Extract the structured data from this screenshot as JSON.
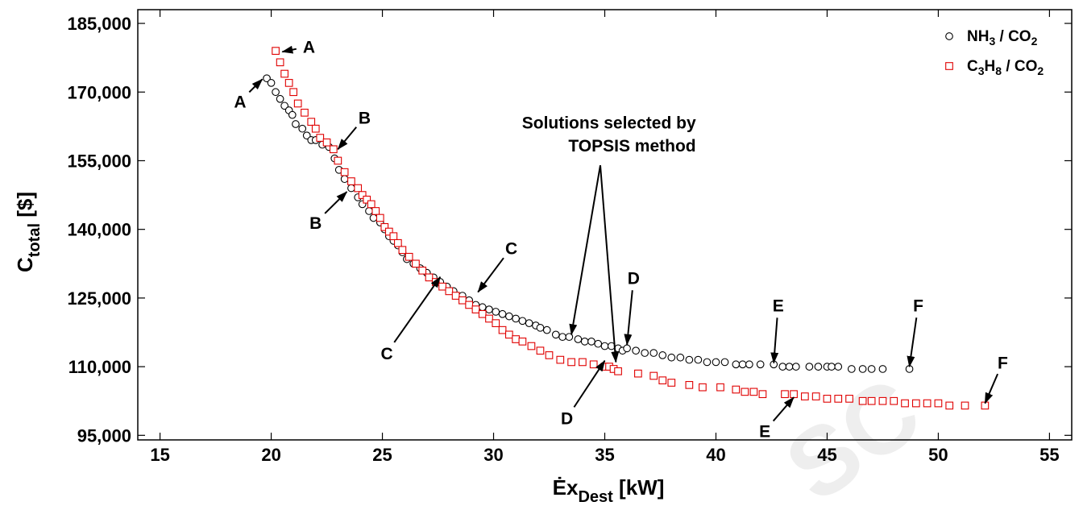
{
  "chart_data": {
    "type": "scatter",
    "xlim": [
      14,
      56
    ],
    "ylim": [
      94000,
      188000
    ],
    "xticks": [
      15,
      20,
      25,
      30,
      35,
      40,
      45,
      50,
      55
    ],
    "yticks": [
      95000,
      110000,
      125000,
      140000,
      155000,
      170000,
      185000
    ],
    "xtick_labels": [
      "15",
      "20",
      "25",
      "30",
      "35",
      "40",
      "45",
      "50",
      "55"
    ],
    "ytick_labels": [
      "95,000",
      "110,000",
      "125,000",
      "140,000",
      "155,000",
      "170,000",
      "185,000"
    ],
    "xlabel_main": "Ėx",
    "xlabel_sub": "Dest",
    "xlabel_unit": " [kW]",
    "ylabel_main": "C",
    "ylabel_sub": "total",
    "ylabel_unit": " [$]",
    "grid": false,
    "legend_position": "top-right",
    "watermark": "SC",
    "colors": {
      "ammonia": "#000000",
      "propane": "#e00000"
    },
    "legend": [
      {
        "series": 0,
        "parts": [
          [
            "NH",
            ""
          ],
          [
            "3",
            "sub"
          ],
          [
            " / CO",
            ""
          ],
          [
            "2",
            "sub"
          ]
        ]
      },
      {
        "series": 1,
        "parts": [
          [
            "C",
            ""
          ],
          [
            "3",
            "sub"
          ],
          [
            "H",
            ""
          ],
          [
            "8",
            "sub"
          ],
          [
            " / CO",
            ""
          ],
          [
            "2",
            "sub"
          ]
        ]
      }
    ],
    "series": [
      {
        "name": "NH3 / CO2",
        "marker": "circle",
        "x": [
          19.8,
          20.0,
          20.2,
          20.4,
          20.6,
          20.8,
          20.95,
          21.1,
          21.4,
          21.6,
          21.8,
          22.0,
          22.3,
          22.6,
          22.85,
          23.05,
          23.3,
          23.6,
          23.9,
          24.1,
          24.4,
          24.6,
          24.9,
          25.1,
          25.3,
          25.5,
          25.7,
          25.9,
          26.1,
          26.4,
          26.7,
          27.0,
          27.3,
          27.6,
          27.9,
          28.2,
          28.6,
          28.9,
          29.2,
          29.5,
          29.8,
          30.1,
          30.4,
          30.7,
          31.0,
          31.3,
          31.6,
          31.9,
          32.1,
          32.4,
          32.8,
          33.1,
          33.4,
          33.8,
          34.1,
          34.4,
          34.7,
          35.0,
          35.3,
          35.6,
          35.8,
          36.0,
          36.4,
          36.8,
          37.2,
          37.6,
          38.0,
          38.4,
          38.8,
          39.2,
          39.6,
          40.0,
          40.4,
          40.9,
          41.2,
          41.5,
          42.0,
          42.6,
          43.0,
          43.3,
          43.6,
          44.2,
          44.6,
          45.0,
          45.2,
          45.5,
          46.1,
          46.6,
          47.0,
          47.5,
          48.7
        ],
        "y": [
          173000,
          172000,
          170000,
          168500,
          167000,
          166000,
          165000,
          163000,
          162000,
          160500,
          159500,
          159500,
          158500,
          158000,
          155500,
          153000,
          151000,
          149000,
          147000,
          145500,
          144000,
          142500,
          141500,
          140000,
          138500,
          137500,
          136500,
          135000,
          133500,
          132500,
          131500,
          130500,
          129500,
          128500,
          127500,
          126500,
          125500,
          124500,
          123500,
          123000,
          122500,
          122000,
          121500,
          121000,
          120500,
          120000,
          119500,
          119000,
          118500,
          118000,
          117000,
          116500,
          116500,
          116000,
          115500,
          115500,
          115000,
          114500,
          114500,
          114000,
          113500,
          114000,
          113500,
          113000,
          113000,
          112500,
          112000,
          112000,
          111500,
          111500,
          111000,
          111000,
          111000,
          110500,
          110500,
          110500,
          110500,
          110500,
          110000,
          110000,
          110000,
          110000,
          110000,
          110000,
          110000,
          110000,
          109500,
          109500,
          109500,
          109500,
          109500
        ]
      },
      {
        "name": "C3H8 / CO2",
        "marker": "square",
        "x": [
          20.2,
          20.4,
          20.6,
          20.8,
          21.0,
          21.2,
          21.5,
          21.8,
          22.0,
          22.2,
          22.5,
          22.8,
          23.0,
          23.3,
          23.6,
          23.9,
          24.1,
          24.3,
          24.5,
          24.7,
          24.9,
          25.1,
          25.3,
          25.5,
          25.7,
          25.9,
          26.2,
          26.5,
          26.8,
          27.1,
          27.4,
          27.7,
          28.0,
          28.3,
          28.6,
          28.9,
          29.2,
          29.5,
          29.8,
          30.1,
          30.4,
          30.7,
          31.0,
          31.3,
          31.7,
          32.1,
          32.5,
          33.0,
          33.5,
          34.0,
          34.5,
          35.0,
          35.2,
          35.4,
          35.6,
          36.5,
          37.2,
          37.6,
          38.0,
          38.8,
          39.4,
          40.2,
          40.9,
          41.3,
          41.7,
          42.1,
          43.1,
          43.5,
          44.0,
          44.5,
          45.0,
          45.5,
          46.0,
          46.6,
          47.0,
          47.5,
          48.0,
          48.5,
          49.0,
          49.5,
          50.0,
          50.5,
          51.2,
          52.1
        ],
        "y": [
          179000,
          176500,
          174000,
          172000,
          170000,
          167500,
          165500,
          163500,
          162000,
          160000,
          159000,
          157500,
          155000,
          152500,
          150500,
          149000,
          147500,
          146500,
          145500,
          144000,
          142500,
          140500,
          139500,
          138500,
          137000,
          135500,
          134000,
          132500,
          131000,
          129500,
          128500,
          127500,
          126500,
          125500,
          124500,
          123500,
          122500,
          121500,
          120500,
          119500,
          118000,
          117000,
          116000,
          115500,
          114500,
          113500,
          112500,
          111500,
          111000,
          111000,
          110500,
          110000,
          110000,
          109500,
          109000,
          108500,
          108000,
          107000,
          106500,
          106000,
          105500,
          105500,
          105000,
          104500,
          104500,
          104000,
          104000,
          104000,
          103500,
          103500,
          103000,
          103000,
          103000,
          102500,
          102500,
          102500,
          102500,
          102000,
          102000,
          102000,
          102000,
          101500,
          101500,
          101500
        ]
      }
    ],
    "annotations": [
      {
        "text": "A",
        "tx": 21.7,
        "ty": 180000,
        "ax": 20.5,
        "ay": 178800
      },
      {
        "text": "A",
        "tx": 18.6,
        "ty": 168000,
        "ax": 19.6,
        "ay": 172800
      },
      {
        "text": "B",
        "tx": 24.2,
        "ty": 164500,
        "ax": 23.0,
        "ay": 157500
      },
      {
        "text": "B",
        "tx": 22.0,
        "ty": 141500,
        "ax": 23.4,
        "ay": 148200
      },
      {
        "text": "C",
        "tx": 30.8,
        "ty": 136000,
        "ax": 29.3,
        "ay": 126300
      },
      {
        "text": "C",
        "tx": 25.2,
        "ty": 113000,
        "ax": 27.6,
        "ay": 129600
      },
      {
        "text": "D",
        "tx": 36.3,
        "ty": 129500,
        "ax": 36.0,
        "ay": 114800
      },
      {
        "text": "D",
        "tx": 33.3,
        "ty": 98800,
        "ax": 35.0,
        "ay": 111300
      },
      {
        "text": "E",
        "tx": 42.8,
        "ty": 123500,
        "ax": 42.6,
        "ay": 110800
      },
      {
        "text": "E",
        "tx": 42.2,
        "ty": 96000,
        "ax": 43.5,
        "ay": 103300
      },
      {
        "text": "F",
        "tx": 49.1,
        "ty": 123500,
        "ax": 48.7,
        "ay": 110000
      },
      {
        "text": "F",
        "tx": 52.9,
        "ty": 111000,
        "ax": 52.1,
        "ay": 102000
      }
    ],
    "topsis": {
      "line1": "Solutions selected by",
      "line2": "TOPSIS method",
      "t1x": 39.1,
      "t1y": 162000,
      "t2x": 39.1,
      "t2y": 157000,
      "apex_x": 34.8,
      "apex_y": 154000,
      "targets": [
        [
          33.5,
          117000
        ],
        [
          35.5,
          111000
        ]
      ]
    }
  }
}
